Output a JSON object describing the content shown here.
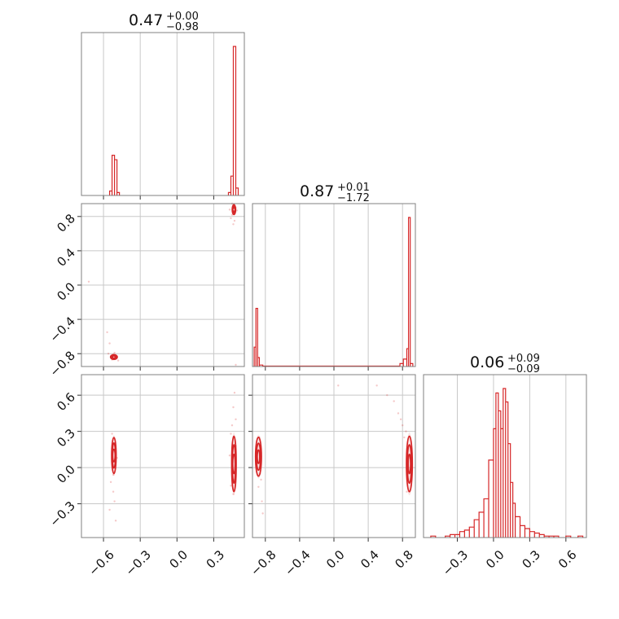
{
  "chart_data": {
    "type": "corner",
    "color": "#d62728",
    "parameters": [
      {
        "range": [
          -0.78,
          0.55
        ],
        "title": {
          "median": "0.47",
          "plus": "+0.00",
          "minus": "−0.98"
        }
      },
      {
        "range": [
          -0.95,
          0.95
        ],
        "title": {
          "median": "0.87",
          "plus": "+0.01",
          "minus": "−1.72"
        }
      },
      {
        "range": [
          -0.58,
          0.77
        ],
        "title": {
          "median": "0.06",
          "plus": "+0.09",
          "minus": "−0.09"
        }
      }
    ],
    "ticks": {
      "x0": {
        "values": [
          -0.6,
          -0.3,
          0.0,
          0.3
        ],
        "labels": [
          "−0.6",
          "−0.3",
          "0.0",
          "0.3"
        ]
      },
      "x1": {
        "values": [
          -0.8,
          -0.4,
          0.0,
          0.4,
          0.8
        ],
        "labels": [
          "−0.8",
          "−0.4",
          "0.0",
          "0.4",
          "0.8"
        ]
      },
      "x2": {
        "values": [
          -0.3,
          0.0,
          0.3,
          0.6
        ],
        "labels": [
          "−0.3",
          "0.0",
          "0.3",
          "0.6"
        ]
      },
      "y1": {
        "values": [
          -0.8,
          -0.4,
          0.0,
          0.4,
          0.8
        ],
        "labels": [
          "−0.8",
          "−0.4",
          "0.0",
          "0.4",
          "0.8"
        ]
      },
      "y2": {
        "values": [
          -0.3,
          0.0,
          0.3,
          0.6
        ],
        "labels": [
          "−0.3",
          "0.0",
          "0.3",
          "0.6"
        ]
      }
    },
    "histograms": [
      {
        "param": 0,
        "bins": [
          [
            -0.55,
            -0.53,
            0.03
          ],
          [
            -0.53,
            -0.51,
            0.27
          ],
          [
            -0.51,
            -0.49,
            0.24
          ],
          [
            -0.49,
            -0.47,
            0.02
          ],
          [
            0.42,
            0.44,
            0.02
          ],
          [
            0.44,
            0.46,
            0.13
          ],
          [
            0.46,
            0.48,
            1.0
          ],
          [
            0.48,
            0.5,
            0.05
          ]
        ]
      },
      {
        "param": 1,
        "bins": [
          [
            -0.93,
            -0.91,
            0.13
          ],
          [
            -0.91,
            -0.89,
            0.39
          ],
          [
            -0.89,
            -0.87,
            0.06
          ],
          [
            -0.87,
            -0.83,
            0.01
          ],
          [
            -0.83,
            0.77,
            0.003
          ],
          [
            0.77,
            0.81,
            0.02
          ],
          [
            0.81,
            0.85,
            0.05
          ],
          [
            0.85,
            0.87,
            0.12
          ],
          [
            0.87,
            0.89,
            1.0
          ],
          [
            0.89,
            0.92,
            0.02
          ]
        ]
      },
      {
        "param": 2,
        "bins": [
          [
            -0.52,
            -0.48,
            0.01
          ],
          [
            -0.4,
            -0.36,
            0.01
          ],
          [
            -0.36,
            -0.32,
            0.02
          ],
          [
            -0.32,
            -0.28,
            0.02
          ],
          [
            -0.28,
            -0.24,
            0.04
          ],
          [
            -0.24,
            -0.2,
            0.05
          ],
          [
            -0.2,
            -0.16,
            0.07
          ],
          [
            -0.16,
            -0.12,
            0.12
          ],
          [
            -0.12,
            -0.08,
            0.17
          ],
          [
            -0.08,
            -0.04,
            0.26
          ],
          [
            -0.04,
            0.0,
            0.52
          ],
          [
            0.0,
            0.02,
            0.73
          ],
          [
            0.02,
            0.04,
            0.97
          ],
          [
            0.04,
            0.06,
            0.85
          ],
          [
            0.06,
            0.08,
            0.73
          ],
          [
            0.08,
            0.1,
            1.0
          ],
          [
            0.1,
            0.12,
            0.91
          ],
          [
            0.12,
            0.14,
            0.63
          ],
          [
            0.14,
            0.16,
            0.37
          ],
          [
            0.16,
            0.18,
            0.23
          ],
          [
            0.18,
            0.22,
            0.14
          ],
          [
            0.22,
            0.26,
            0.08
          ],
          [
            0.26,
            0.3,
            0.06
          ],
          [
            0.3,
            0.34,
            0.04
          ],
          [
            0.34,
            0.38,
            0.03
          ],
          [
            0.38,
            0.42,
            0.02
          ],
          [
            0.42,
            0.46,
            0.01
          ],
          [
            0.46,
            0.5,
            0.01
          ],
          [
            0.5,
            0.54,
            0.01
          ],
          [
            0.6,
            0.64,
            0.01
          ],
          [
            0.7,
            0.74,
            0.01
          ]
        ]
      }
    ],
    "clusters": [
      {
        "x": 0,
        "y": 1,
        "cx": 0.465,
        "cy": 0.88,
        "sx": 0.006,
        "sy": 0.025
      },
      {
        "x": 0,
        "y": 1,
        "cx": -0.515,
        "cy": -0.84,
        "sx": 0.012,
        "sy": 0.012
      },
      {
        "x": 0,
        "y": 2,
        "cx": -0.515,
        "cy": 0.1,
        "sx": 0.008,
        "sy": 0.065
      },
      {
        "x": 0,
        "y": 2,
        "cx": 0.465,
        "cy": 0.03,
        "sx": 0.008,
        "sy": 0.1
      },
      {
        "x": 1,
        "y": 2,
        "cx": -0.88,
        "cy": 0.09,
        "sx": 0.015,
        "sy": 0.07
      },
      {
        "x": 1,
        "y": 2,
        "cx": 0.88,
        "cy": 0.03,
        "sx": 0.015,
        "sy": 0.1
      }
    ],
    "scatter": [
      {
        "x": 0,
        "y": 1,
        "points": [
          [
            0.46,
            0.93
          ],
          [
            0.47,
            0.85
          ],
          [
            0.45,
            0.82
          ],
          [
            0.48,
            0.9
          ],
          [
            0.44,
            0.78
          ],
          [
            0.46,
            0.71
          ],
          [
            0.49,
            0.87
          ],
          [
            0.43,
            0.88
          ],
          [
            0.47,
            0.75
          ],
          [
            0.45,
            0.95
          ],
          [
            -0.52,
            -0.81
          ],
          [
            -0.5,
            -0.86
          ],
          [
            -0.54,
            -0.83
          ],
          [
            -0.49,
            -0.84
          ],
          [
            -0.53,
            -0.87
          ],
          [
            -0.56,
            -0.8
          ],
          [
            -0.57,
            -0.55
          ],
          [
            -0.55,
            -0.68
          ],
          [
            -0.51,
            -0.79
          ],
          [
            -0.48,
            -0.88
          ],
          [
            0.48,
            -0.93
          ],
          [
            -0.72,
            0.04
          ]
        ]
      },
      {
        "x": 0,
        "y": 2,
        "points": [
          [
            -0.51,
            0.2
          ],
          [
            -0.53,
            0.05
          ],
          [
            -0.52,
            -0.06
          ],
          [
            -0.5,
            0.14
          ],
          [
            -0.54,
            -0.12
          ],
          [
            -0.52,
            -0.2
          ],
          [
            -0.51,
            -0.28
          ],
          [
            -0.53,
            0.28
          ],
          [
            -0.55,
            -0.35
          ],
          [
            -0.5,
            -0.44
          ],
          [
            -0.52,
            0.0
          ],
          [
            -0.49,
            0.08
          ],
          [
            0.46,
            0.25
          ],
          [
            0.47,
            -0.1
          ],
          [
            0.45,
            0.35
          ],
          [
            0.48,
            0.18
          ],
          [
            0.44,
            -0.15
          ],
          [
            0.46,
            0.5
          ],
          [
            0.47,
            0.62
          ],
          [
            0.45,
            -0.04
          ],
          [
            0.48,
            0.4
          ],
          [
            0.43,
            0.1
          ],
          [
            0.46,
            -0.22
          ],
          [
            0.44,
            0.28
          ]
        ]
      },
      {
        "x": 1,
        "y": 2,
        "points": [
          [
            -0.89,
            0.18
          ],
          [
            -0.86,
            -0.05
          ],
          [
            -0.88,
            -0.16
          ],
          [
            -0.84,
            -0.28
          ],
          [
            -0.83,
            -0.38
          ],
          [
            -0.9,
            0.02
          ],
          [
            -0.87,
            0.25
          ],
          [
            -0.85,
            -0.1
          ],
          [
            0.8,
            0.35
          ],
          [
            0.75,
            0.45
          ],
          [
            0.7,
            0.55
          ],
          [
            0.82,
            0.25
          ],
          [
            0.86,
            0.15
          ],
          [
            0.88,
            -0.12
          ],
          [
            0.85,
            -0.2
          ],
          [
            0.89,
            0.08
          ],
          [
            0.78,
            0.4
          ],
          [
            0.84,
            0.3
          ],
          [
            0.87,
            -0.05
          ],
          [
            0.05,
            0.68
          ],
          [
            0.5,
            0.68
          ],
          [
            0.62,
            0.6
          ]
        ]
      }
    ]
  }
}
